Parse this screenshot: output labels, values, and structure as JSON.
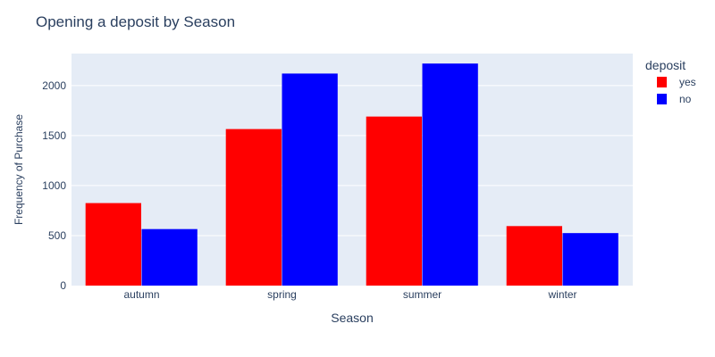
{
  "chart_data": {
    "type": "bar",
    "title": "Opening a deposit by Season",
    "xlabel": "Season",
    "ylabel": "Frequency of Purchase",
    "categories": [
      "autumn",
      "spring",
      "summer",
      "winter"
    ],
    "series": [
      {
        "name": "yes",
        "color": "#ff0000",
        "values": [
          825,
          1565,
          1690,
          595
        ]
      },
      {
        "name": "no",
        "color": "#0000ff",
        "values": [
          565,
          2120,
          2220,
          525
        ]
      }
    ],
    "ylim": [
      0,
      2320
    ],
    "yticks": [
      0,
      500,
      1000,
      1500,
      2000
    ],
    "legend": {
      "title": "deposit",
      "position": "top-right"
    },
    "grid": true,
    "plot_background": "#e5ecf6"
  }
}
